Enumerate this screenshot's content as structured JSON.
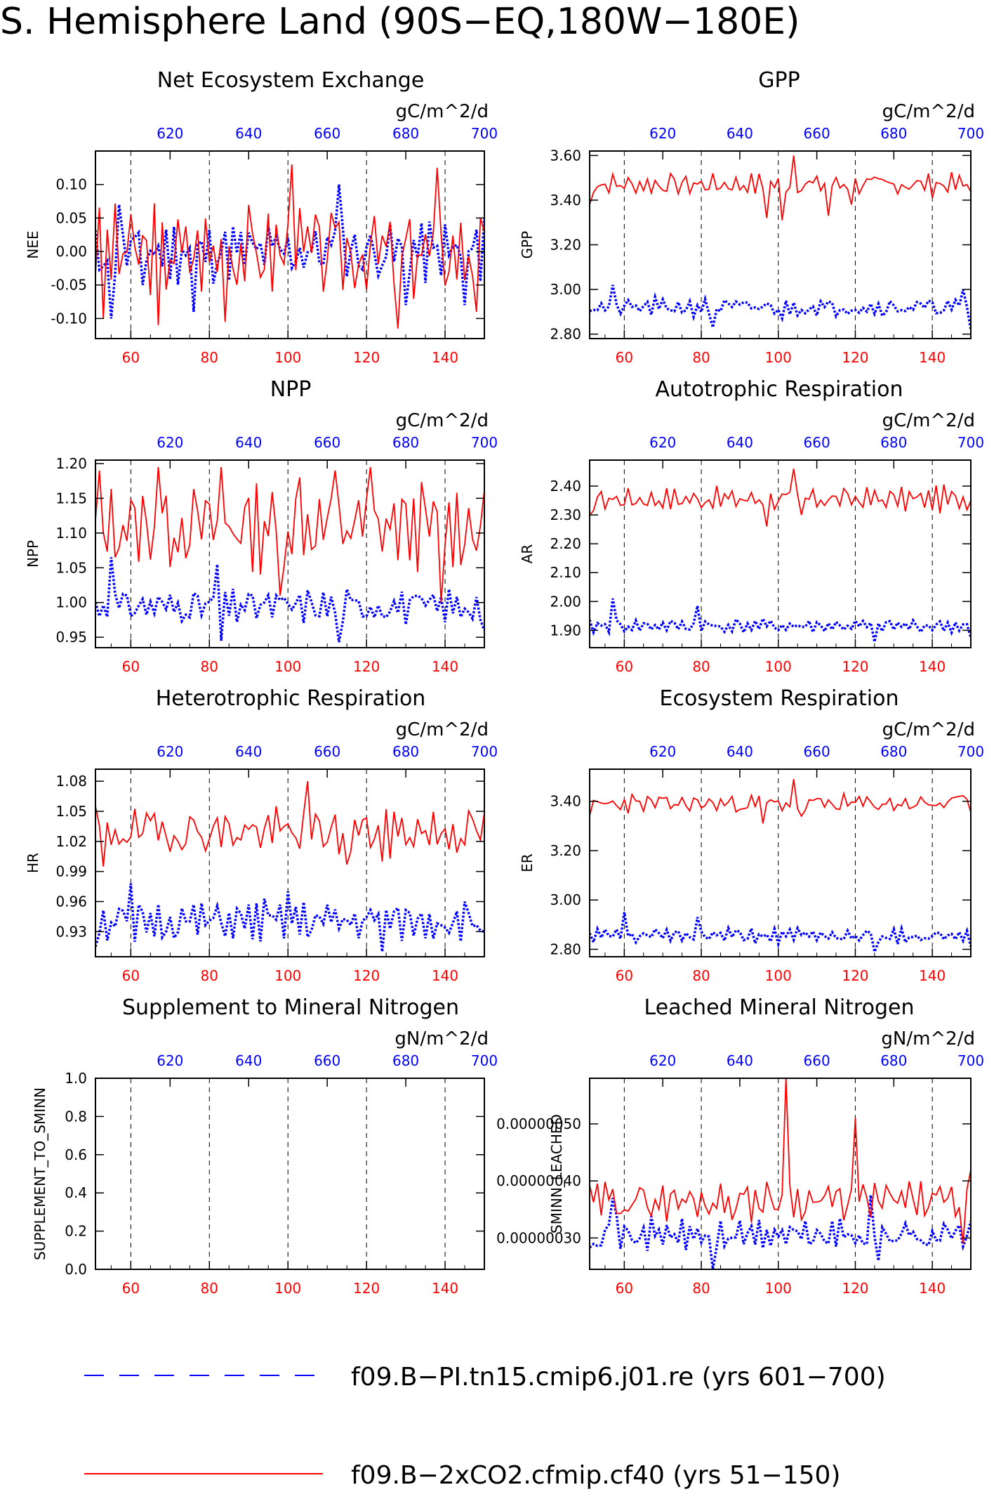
{
  "page": {
    "title": "S. Hemisphere Land (90S−EQ,180W−180E)"
  },
  "colors": {
    "series_cf40": "#ff0000",
    "series_re": "#0000ff",
    "axes": "#000000",
    "grid": "#000000"
  },
  "legend": {
    "items": [
      {
        "label": "f09.B−PI.tn15.cmip6.j01.re (yrs 601−700)",
        "color": "#0000ff",
        "style": "dashed"
      },
      {
        "label": "f09.B−2xCO2.cfmip.cf40 (yrs 51−150)",
        "color": "#ff0000",
        "style": "solid"
      }
    ]
  },
  "chart_data": [
    {
      "type": "line",
      "title": "Net Ecosystem Exchange",
      "units": "gC/m^2/d",
      "ylabel": "NEE",
      "xlim": [
        51,
        150
      ],
      "x_ticks": [
        60,
        80,
        100,
        120,
        140
      ],
      "x_tick_labels": [
        "60",
        "80",
        "100",
        "120",
        "140"
      ],
      "top_xlim": [
        601,
        700
      ],
      "top_ticks": [
        620,
        640,
        660,
        680,
        700
      ],
      "top_tick_labels": [
        "620",
        "640",
        "660",
        "680",
        "700"
      ],
      "ylim": [
        -0.13,
        0.15
      ],
      "y_ticks": [
        -0.1,
        -0.05,
        0.0,
        0.05,
        0.1
      ],
      "y_tick_labels": [
        "-0.10",
        "-0.05",
        "0.00",
        "0.05",
        "0.10"
      ],
      "grid": "vertical dashed at x ticks",
      "series": [
        {
          "name": "f09.B−PI.tn15.cmip6.j01.re (yrs 601−700)",
          "color": "#0000ff",
          "style": "dotted",
          "base": 0.0,
          "amp": 0.045,
          "seed": 11,
          "spikes": [
            [
              55,
              -0.1
            ],
            [
              57,
              0.07
            ],
            [
              63,
              -0.05
            ],
            [
              76,
              -0.09
            ],
            [
              113,
              0.1
            ],
            [
              130,
              -0.08
            ],
            [
              145,
              -0.08
            ],
            [
              150,
              0.05
            ]
          ]
        },
        {
          "name": "f09.B−2xCO2.cfmip.cf40 (yrs 51−150)",
          "color": "#ff0000",
          "style": "solid",
          "base": 0.0,
          "amp": 0.07,
          "seed": 3,
          "spikes": [
            [
              53,
              -0.1
            ],
            [
              67,
              -0.11
            ],
            [
              84,
              -0.105
            ],
            [
              101,
              0.13
            ],
            [
              128,
              -0.115
            ],
            [
              138,
              0.125
            ],
            [
              148,
              -0.09
            ]
          ]
        }
      ]
    },
    {
      "type": "line",
      "title": "GPP",
      "units": "gC/m^2/d",
      "ylabel": "GPP",
      "xlim": [
        51,
        150
      ],
      "x_ticks": [
        60,
        80,
        100,
        120,
        140
      ],
      "x_tick_labels": [
        "60",
        "80",
        "100",
        "120",
        "140"
      ],
      "top_xlim": [
        601,
        700
      ],
      "top_ticks": [
        620,
        640,
        660,
        680,
        700
      ],
      "top_tick_labels": [
        "620",
        "640",
        "660",
        "680",
        "700"
      ],
      "ylim": [
        2.78,
        3.62
      ],
      "y_ticks": [
        2.8,
        3.0,
        3.2,
        3.4,
        3.6
      ],
      "y_tick_labels": [
        "2.80",
        "3.00",
        "3.20",
        "3.40",
        "3.60"
      ],
      "grid": "vertical dashed at x ticks",
      "series": [
        {
          "name": "f09.B−PI.tn15.cmip6.j01.re (yrs 601−700)",
          "color": "#0000ff",
          "style": "dotted",
          "base": 2.92,
          "amp": 0.04,
          "seed": 21,
          "spikes": [
            [
              57,
              3.02
            ],
            [
              83,
              2.83
            ],
            [
              101,
              2.87
            ],
            [
              148,
              3.0
            ],
            [
              150,
              2.82
            ]
          ]
        },
        {
          "name": "f09.B−2xCO2.cfmip.cf40 (yrs 51−150)",
          "color": "#ff0000",
          "style": "solid",
          "base": 3.47,
          "amp": 0.05,
          "seed": 7,
          "spikes": [
            [
              51,
              3.38
            ],
            [
              97,
              3.32
            ],
            [
              101,
              3.31
            ],
            [
              104,
              3.6
            ],
            [
              113,
              3.33
            ],
            [
              119,
              3.38
            ]
          ]
        }
      ]
    },
    {
      "type": "line",
      "title": "NPP",
      "units": "gC/m^2/d",
      "ylabel": "NPP",
      "xlim": [
        51,
        150
      ],
      "x_ticks": [
        60,
        80,
        100,
        120,
        140
      ],
      "x_tick_labels": [
        "60",
        "80",
        "100",
        "120",
        "140"
      ],
      "top_xlim": [
        601,
        700
      ],
      "top_ticks": [
        620,
        640,
        660,
        680,
        700
      ],
      "top_tick_labels": [
        "620",
        "640",
        "660",
        "680",
        "700"
      ],
      "ylim": [
        0.935,
        1.205
      ],
      "y_ticks": [
        0.95,
        1.0,
        1.05,
        1.1,
        1.15,
        1.2
      ],
      "y_tick_labels": [
        "0.95",
        "1.00",
        "1.05",
        "1.10",
        "1.15",
        "1.20"
      ],
      "grid": "vertical dashed at x ticks",
      "series": [
        {
          "name": "f09.B−PI.tn15.cmip6.j01.re (yrs 601−700)",
          "color": "#0000ff",
          "style": "dotted",
          "base": 0.995,
          "amp": 0.025,
          "seed": 31,
          "spikes": [
            [
              55,
              1.065
            ],
            [
              82,
              1.055
            ],
            [
              83,
              0.945
            ],
            [
              113,
              0.943
            ],
            [
              150,
              0.96
            ]
          ]
        },
        {
          "name": "f09.B−2xCO2.cfmip.cf40 (yrs 51−150)",
          "color": "#ff0000",
          "style": "solid",
          "base": 1.11,
          "amp": 0.06,
          "seed": 13,
          "spikes": [
            [
              52,
              1.19
            ],
            [
              67,
              1.195
            ],
            [
              83,
              1.195
            ],
            [
              98,
              1.01
            ],
            [
              103,
              1.18
            ],
            [
              112,
              1.19
            ],
            [
              121,
              1.195
            ],
            [
              139,
              1.0
            ]
          ]
        }
      ]
    },
    {
      "type": "line",
      "title": "Autotrophic Respiration",
      "units": "gC/m^2/d",
      "ylabel": "AR",
      "xlim": [
        51,
        150
      ],
      "x_ticks": [
        60,
        80,
        100,
        120,
        140
      ],
      "x_tick_labels": [
        "60",
        "80",
        "100",
        "120",
        "140"
      ],
      "top_xlim": [
        601,
        700
      ],
      "top_ticks": [
        620,
        640,
        660,
        680,
        700
      ],
      "top_tick_labels": [
        "620",
        "640",
        "660",
        "680",
        "700"
      ],
      "ylim": [
        1.84,
        2.49
      ],
      "y_ticks": [
        1.9,
        2.0,
        2.1,
        2.2,
        2.3,
        2.4
      ],
      "y_tick_labels": [
        "1.90",
        "2.00",
        "2.10",
        "2.20",
        "2.30",
        "2.40"
      ],
      "grid": "vertical dashed at x ticks",
      "series": [
        {
          "name": "f09.B−PI.tn15.cmip6.j01.re (yrs 601−700)",
          "color": "#0000ff",
          "style": "dotted",
          "base": 1.915,
          "amp": 0.025,
          "seed": 41,
          "spikes": [
            [
              57,
              2.01
            ],
            [
              79,
              1.985
            ],
            [
              125,
              1.86
            ],
            [
              150,
              1.875
            ]
          ]
        },
        {
          "name": "f09.B−2xCO2.cfmip.cf40 (yrs 51−150)",
          "color": "#ff0000",
          "style": "solid",
          "base": 2.355,
          "amp": 0.04,
          "seed": 17,
          "spikes": [
            [
              51,
              2.3
            ],
            [
              97,
              2.26
            ],
            [
              104,
              2.46
            ],
            [
              106,
              2.3
            ]
          ]
        }
      ]
    },
    {
      "type": "line",
      "title": "Heterotrophic Respiration",
      "units": "gC/m^2/d",
      "ylabel": "HR",
      "xlim": [
        51,
        150
      ],
      "x_ticks": [
        60,
        80,
        100,
        120,
        140
      ],
      "x_tick_labels": [
        "60",
        "80",
        "100",
        "120",
        "140"
      ],
      "top_xlim": [
        601,
        700
      ],
      "top_ticks": [
        620,
        640,
        660,
        680,
        700
      ],
      "top_tick_labels": [
        "620",
        "640",
        "660",
        "680",
        "700"
      ],
      "ylim": [
        0.905,
        1.092
      ],
      "y_ticks": [
        0.93,
        0.96,
        0.99,
        1.02,
        1.05,
        1.08
      ],
      "y_tick_labels": [
        "0.93",
        "0.96",
        "0.99",
        "1.02",
        "1.05",
        "1.08"
      ],
      "grid": "vertical dashed at x ticks",
      "series": [
        {
          "name": "f09.B−PI.tn15.cmip6.j01.re (yrs 601−700)",
          "color": "#0000ff",
          "style": "dotted",
          "base": 0.94,
          "amp": 0.02,
          "seed": 51,
          "spikes": [
            [
              51,
              0.915
            ],
            [
              60,
              0.978
            ],
            [
              61,
              0.92
            ],
            [
              100,
              0.97
            ],
            [
              124,
              0.91
            ],
            [
              150,
              0.93
            ]
          ]
        },
        {
          "name": "f09.B−2xCO2.cfmip.cf40 (yrs 51−150)",
          "color": "#ff0000",
          "style": "solid",
          "base": 1.03,
          "amp": 0.025,
          "seed": 19,
          "spikes": [
            [
              51,
              1.055
            ],
            [
              53,
              0.995
            ],
            [
              105,
              1.08
            ],
            [
              115,
              0.997
            ],
            [
              124,
              1.0
            ]
          ]
        }
      ]
    },
    {
      "type": "line",
      "title": "Ecosystem Respiration",
      "units": "gC/m^2/d",
      "ylabel": "ER",
      "xlim": [
        51,
        150
      ],
      "x_ticks": [
        60,
        80,
        100,
        120,
        140
      ],
      "x_tick_labels": [
        "60",
        "80",
        "100",
        "120",
        "140"
      ],
      "top_xlim": [
        601,
        700
      ],
      "top_ticks": [
        620,
        640,
        660,
        680,
        700
      ],
      "top_tick_labels": [
        "620",
        "640",
        "660",
        "680",
        "700"
      ],
      "ylim": [
        2.77,
        3.53
      ],
      "y_ticks": [
        2.8,
        3.0,
        3.2,
        3.4
      ],
      "y_tick_labels": [
        "2.80",
        "3.00",
        "3.20",
        "3.40"
      ],
      "grid": "vertical dashed at x ticks",
      "series": [
        {
          "name": "f09.B−PI.tn15.cmip6.j01.re (yrs 601−700)",
          "color": "#0000ff",
          "style": "dotted",
          "base": 2.855,
          "amp": 0.03,
          "seed": 61,
          "spikes": [
            [
              60,
              2.95
            ],
            [
              79,
              2.93
            ],
            [
              125,
              2.79
            ],
            [
              150,
              2.81
            ]
          ]
        },
        {
          "name": "f09.B−2xCO2.cfmip.cf40 (yrs 51−150)",
          "color": "#ff0000",
          "style": "solid",
          "base": 3.39,
          "amp": 0.04,
          "seed": 23,
          "spikes": [
            [
              51,
              3.34
            ],
            [
              96,
              3.31
            ],
            [
              104,
              3.49
            ],
            [
              106,
              3.34
            ],
            [
              147,
              3.42
            ]
          ]
        }
      ]
    },
    {
      "type": "line",
      "title": "Supplement to Mineral Nitrogen",
      "units": "gN/m^2/d",
      "ylabel": "SUPPLEMENT_TO_SMINN",
      "xlim": [
        51,
        150
      ],
      "x_ticks": [
        60,
        80,
        100,
        120,
        140
      ],
      "x_tick_labels": [
        "60",
        "80",
        "100",
        "120",
        "140"
      ],
      "top_xlim": [
        601,
        700
      ],
      "top_ticks": [
        620,
        640,
        660,
        680,
        700
      ],
      "top_tick_labels": [
        "620",
        "640",
        "660",
        "680",
        "700"
      ],
      "ylim": [
        0.0,
        1.0
      ],
      "y_ticks": [
        0.0,
        0.2,
        0.4,
        0.6,
        0.8,
        1.0
      ],
      "y_tick_labels": [
        "0.0",
        "0.2",
        "0.4",
        "0.6",
        "0.8",
        "1.0"
      ],
      "grid": "vertical dashed at x ticks",
      "series": []
    },
    {
      "type": "line",
      "title": "Leached Mineral Nitrogen",
      "units": "gN/m^2/d",
      "ylabel": "SMINN_LEACHED",
      "xlim": [
        51,
        150
      ],
      "x_ticks": [
        60,
        80,
        100,
        120,
        140
      ],
      "x_tick_labels": [
        "60",
        "80",
        "100",
        "120",
        "140"
      ],
      "top_xlim": [
        601,
        700
      ],
      "top_ticks": [
        620,
        640,
        660,
        680,
        700
      ],
      "top_tick_labels": [
        "620",
        "640",
        "660",
        "680",
        "700"
      ],
      "ylim": [
        2.45e-07,
        5.8e-07
      ],
      "y_ticks": [
        3e-07,
        4e-07,
        5e-07
      ],
      "y_tick_labels": [
        "0.00000030",
        "0.00000040",
        "0.00000050"
      ],
      "grid": "vertical dashed at x ticks",
      "series": [
        {
          "name": "f09.B−PI.tn15.cmip6.j01.re (yrs 601−700)",
          "color": "#0000ff",
          "style": "dotted",
          "base": 3.05e-07,
          "amp": 2.8e-08,
          "seed": 71,
          "spikes": [
            [
              57,
              3.7e-07
            ],
            [
              83,
              2.45e-07
            ],
            [
              124,
              3.75e-07
            ],
            [
              126,
              2.6e-07
            ],
            [
              148,
              2.85e-07
            ]
          ]
        },
        {
          "name": "f09.B−2xCO2.cfmip.cf40 (yrs 51−150)",
          "color": "#ff0000",
          "style": "solid",
          "base": 3.65e-07,
          "amp": 3.5e-08,
          "seed": 29,
          "spikes": [
            [
              102,
              5.8e-07
            ],
            [
              120,
              5.1e-07
            ],
            [
              148,
              2.9e-07
            ],
            [
              150,
              4.2e-07
            ]
          ]
        }
      ]
    }
  ]
}
